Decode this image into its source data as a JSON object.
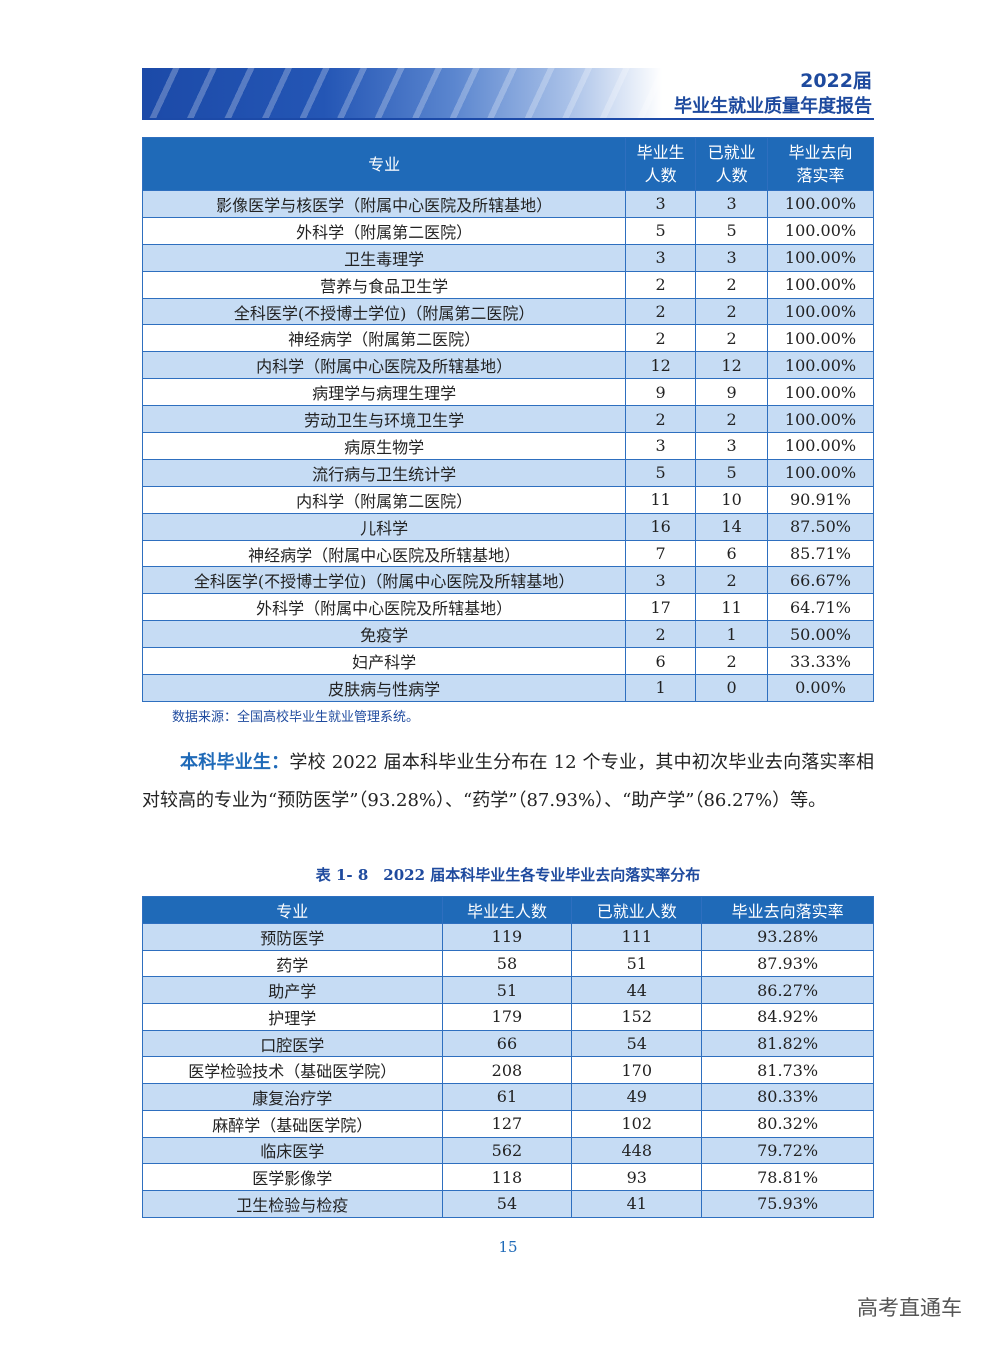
{
  "header": {
    "year": "2022届",
    "subtitle": "毕业生就业质量年度报告"
  },
  "table1": {
    "headers": [
      "专业",
      "毕业生人数",
      "已就业人数",
      "毕业去向落实率"
    ],
    "rows": [
      [
        "影像医学与核医学（附属中心医院及所辖基地）",
        "3",
        "3",
        "100.00%"
      ],
      [
        "外科学（附属第二医院）",
        "5",
        "5",
        "100.00%"
      ],
      [
        "卫生毒理学",
        "3",
        "3",
        "100.00%"
      ],
      [
        "营养与食品卫生学",
        "2",
        "2",
        "100.00%"
      ],
      [
        "全科医学(不授博士学位)（附属第二医院）",
        "2",
        "2",
        "100.00%"
      ],
      [
        "神经病学（附属第二医院）",
        "2",
        "2",
        "100.00%"
      ],
      [
        "内科学（附属中心医院及所辖基地）",
        "12",
        "12",
        "100.00%"
      ],
      [
        "病理学与病理生理学",
        "9",
        "9",
        "100.00%"
      ],
      [
        "劳动卫生与环境卫生学",
        "2",
        "2",
        "100.00%"
      ],
      [
        "病原生物学",
        "3",
        "3",
        "100.00%"
      ],
      [
        "流行病与卫生统计学",
        "5",
        "5",
        "100.00%"
      ],
      [
        "内科学（附属第二医院）",
        "11",
        "10",
        "90.91%"
      ],
      [
        "儿科学",
        "16",
        "14",
        "87.50%"
      ],
      [
        "神经病学（附属中心医院及所辖基地）",
        "7",
        "6",
        "85.71%"
      ],
      [
        "全科医学(不授博士学位)（附属中心医院及所辖基地）",
        "3",
        "2",
        "66.67%"
      ],
      [
        "外科学（附属中心医院及所辖基地）",
        "17",
        "11",
        "64.71%"
      ],
      [
        "免疫学",
        "2",
        "1",
        "50.00%"
      ],
      [
        "妇产科学",
        "6",
        "2",
        "33.33%"
      ],
      [
        "皮肤病与性病学",
        "1",
        "0",
        "0.00%"
      ]
    ]
  },
  "source": "数据来源：全国高校毕业生就业管理系统。",
  "paragraph": {
    "lead": "本科毕业生：",
    "text": "学校 2022 届本科毕业生分布在 12 个专业，其中初次毕业去向落实率相对较高的专业为“预防医学”（93.28%）、“药学”（87.93%）、“助产学”（86.27%）等。"
  },
  "caption": "表 1- 8　2022 届本科毕业生各专业毕业去向落实率分布",
  "table2": {
    "headers": [
      "专业",
      "毕业生人数",
      "已就业人数",
      "毕业去向落实率"
    ],
    "rows": [
      [
        "预防医学",
        "119",
        "111",
        "93.28%"
      ],
      [
        "药学",
        "58",
        "51",
        "87.93%"
      ],
      [
        "助产学",
        "51",
        "44",
        "86.27%"
      ],
      [
        "护理学",
        "179",
        "152",
        "84.92%"
      ],
      [
        "口腔医学",
        "66",
        "54",
        "81.82%"
      ],
      [
        "医学检验技术（基础医学院）",
        "208",
        "170",
        "81.73%"
      ],
      [
        "康复治疗学",
        "61",
        "49",
        "80.33%"
      ],
      [
        "麻醉学（基础医学院）",
        "127",
        "102",
        "80.32%"
      ],
      [
        "临床医学",
        "562",
        "448",
        "79.72%"
      ],
      [
        "医学影像学",
        "118",
        "93",
        "78.81%"
      ],
      [
        "卫生检验与检疫",
        "54",
        "41",
        "75.93%"
      ]
    ]
  },
  "page_number": "15",
  "watermark": "高考直通车",
  "colors": {
    "header_blue": "#1f6ab8",
    "row_alt": "#c6dcf4",
    "title_blue": "#1e4a9e"
  }
}
